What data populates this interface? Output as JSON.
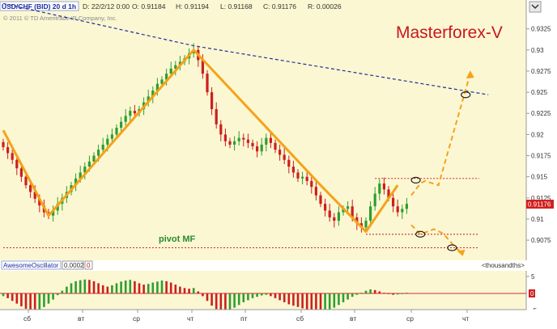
{
  "header": {
    "symbol": "USD/CHF (BID) 20 d 1h",
    "date": "D: 22/2/12 0:00",
    "open": "O: 0.91184",
    "high": "H: 0.91194",
    "low": "L: 0.91168",
    "close": "C: 0.91176",
    "range": "R: 0.00026",
    "copyright": "© 2011 © TD Ameritrade IP Company, Inc."
  },
  "watermark": "Masterforex-V",
  "pivot_label": "pivot MF",
  "price_tag": "0.91176",
  "oscillator": {
    "name": "AwesomeOscillator",
    "value": "0.0002",
    "value2": "0",
    "units": "<thousandths>",
    "marker": "0"
  },
  "colors": {
    "price_bg": "#fbf7d2",
    "candle_up": "#2f9e2f",
    "candle_down": "#cc1f1f",
    "zigzag": "#f5a21b",
    "trend": "#1c2f9e",
    "level": "#d42a2a",
    "pivot_text": "#2e8b2e",
    "watermark": "#c8181e"
  },
  "chart_data": {
    "type": "candlestick",
    "title": "USD/CHF (BID) 20 d 1h",
    "y_ticks": [
      "0.9325",
      "0.93",
      "0.9275",
      "0.925",
      "0.9225",
      "0.92",
      "0.9175",
      "0.915",
      "0.9125",
      "0.91",
      "0.9075"
    ],
    "ylim": [
      0.9055,
      0.934
    ],
    "x_ticks": [
      "сб",
      "вт",
      "ср",
      "чт",
      "пт",
      "сб",
      "вт",
      "ср",
      "чт"
    ],
    "closes": [
      0.9185,
      0.9178,
      0.917,
      0.916,
      0.915,
      0.914,
      0.9132,
      0.9124,
      0.9116,
      0.9108,
      0.9104,
      0.911,
      0.9118,
      0.9125,
      0.9132,
      0.914,
      0.9148,
      0.9155,
      0.9162,
      0.9168,
      0.9175,
      0.9182,
      0.9188,
      0.9195,
      0.92,
      0.9208,
      0.9215,
      0.9222,
      0.9228,
      0.9225,
      0.923,
      0.9238,
      0.9245,
      0.9252,
      0.926,
      0.9265,
      0.9272,
      0.9278,
      0.9282,
      0.9286,
      0.929,
      0.9296,
      0.93,
      0.9288,
      0.9272,
      0.925,
      0.923,
      0.9212,
      0.92,
      0.9192,
      0.9188,
      0.9192,
      0.9196,
      0.9194,
      0.919,
      0.9186,
      0.918,
      0.9188,
      0.9196,
      0.919,
      0.9182,
      0.9176,
      0.917,
      0.9162,
      0.9155,
      0.9148,
      0.915,
      0.9145,
      0.9138,
      0.9128,
      0.9118,
      0.911,
      0.9102,
      0.9098,
      0.9108,
      0.9112,
      0.9115,
      0.9102,
      0.9095,
      0.909,
      0.9098,
      0.9115,
      0.913,
      0.9142,
      0.9135,
      0.9125,
      0.9115,
      0.9108,
      0.9112,
      0.9118
    ],
    "zigzag": [
      [
        0,
        0.9205
      ],
      [
        10,
        0.9104
      ],
      [
        42,
        0.93
      ],
      [
        70,
        0.914
      ],
      [
        80,
        0.9085
      ],
      [
        87,
        0.914
      ]
    ],
    "projection_up": [
      [
        90,
        0.9128
      ],
      [
        92,
        0.9142
      ],
      [
        93,
        0.9145
      ],
      [
        96,
        0.914
      ],
      [
        103,
        0.9272
      ]
    ],
    "projection_down": [
      [
        90,
        0.9093
      ],
      [
        92,
        0.9082
      ],
      [
        95,
        0.9088
      ],
      [
        97,
        0.9083
      ],
      [
        100,
        0.9065
      ],
      [
        101,
        0.9061
      ]
    ],
    "trendline": [
      [
        0,
        0.9355
      ],
      [
        42,
        0.9305
      ],
      [
        107,
        0.9247
      ]
    ],
    "resistance_level": {
      "value": 0.9148,
      "from": 82,
      "to": 105
    },
    "support_levels": [
      {
        "value": 0.9082,
        "from": 80,
        "to": 105
      },
      {
        "value": 0.9066,
        "from": 0,
        "to": 105
      }
    ],
    "circles": [
      [
        91,
        0.9146
      ],
      [
        92,
        0.9082
      ],
      [
        99,
        0.9066
      ],
      [
        102,
        0.9247
      ]
    ],
    "ao_values": [
      -0.8,
      -1.4,
      -2.2,
      -3.0,
      -3.8,
      -4.5,
      -5.0,
      -5.2,
      -4.8,
      -4.0,
      -3.0,
      -1.8,
      -0.5,
      0.8,
      2.0,
      3.0,
      3.6,
      3.9,
      4.1,
      4.0,
      3.6,
      3.0,
      2.4,
      2.0,
      2.4,
      3.0,
      3.5,
      3.8,
      4.0,
      3.6,
      3.0,
      2.6,
      2.8,
      3.2,
      3.5,
      3.8,
      3.6,
      3.2,
      2.6,
      2.0,
      1.6,
      1.4,
      1.6,
      0.6,
      -0.8,
      -2.2,
      -3.6,
      -4.6,
      -5.2,
      -5.4,
      -5.0,
      -4.2,
      -3.4,
      -2.6,
      -2.0,
      -1.4,
      -1.0,
      -0.6,
      -0.4,
      -0.8,
      -1.4,
      -2.0,
      -2.6,
      -3.2,
      -3.6,
      -4.0,
      -4.4,
      -4.8,
      -5.2,
      -5.6,
      -5.8,
      -5.6,
      -5.0,
      -4.2,
      -3.4,
      -2.6,
      -1.8,
      -1.0,
      -0.4,
      0.2,
      0.8,
      1.2,
      1.0,
      0.6,
      0.2,
      -0.2,
      -0.4,
      -0.3,
      -0.1,
      0.2
    ],
    "ao_ticks": [
      "5",
      "0",
      "-5"
    ]
  }
}
